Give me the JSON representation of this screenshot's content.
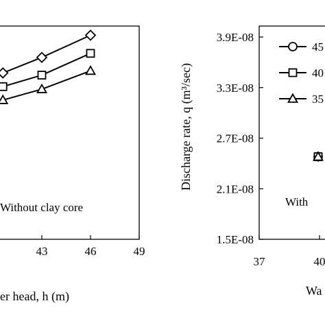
{
  "chart_data": [
    {
      "type": "line",
      "annotation": "Without clay core",
      "xlabel_fragment": "er head, h (m)",
      "x_ticks": [
        "43",
        "46",
        "49"
      ],
      "xlim": [
        40,
        49
      ],
      "ylim": [
        0,
        1
      ],
      "series": [
        {
          "marker": "diamond",
          "x": [
            40.6,
            43,
            46
          ],
          "y": [
            0.78,
            0.853,
            0.957
          ]
        },
        {
          "marker": "square",
          "x": [
            40.6,
            43,
            46
          ],
          "y": [
            0.716,
            0.77,
            0.872
          ]
        },
        {
          "marker": "triangle",
          "x": [
            40.6,
            43,
            46
          ],
          "y": [
            0.653,
            0.704,
            0.79
          ]
        }
      ]
    },
    {
      "type": "scatter",
      "ylabel": "Discharge rate, q (m³/sec)",
      "y_ticks": [
        "3.9E-08",
        "3.3E-08",
        "2.7E-08",
        "2.1E-08",
        "1.5E-08"
      ],
      "y_tick_values": [
        3.9e-08,
        3.3e-08,
        2.7e-08,
        2.1e-08,
        1.5e-08
      ],
      "x_ticks": [
        "37",
        "40"
      ],
      "xlabel_fragment": "Wa",
      "annotation": "With",
      "legend": [
        {
          "marker": "circle",
          "label": "45"
        },
        {
          "marker": "square",
          "label": "40"
        },
        {
          "marker": "triangle",
          "label": "35"
        }
      ],
      "points": [
        {
          "marker": "circle",
          "x": 40,
          "y": 2.48e-08
        },
        {
          "marker": "square",
          "x": 40,
          "y": 2.48e-08
        },
        {
          "marker": "triangle",
          "x": 40,
          "y": 2.48e-08
        }
      ]
    }
  ]
}
